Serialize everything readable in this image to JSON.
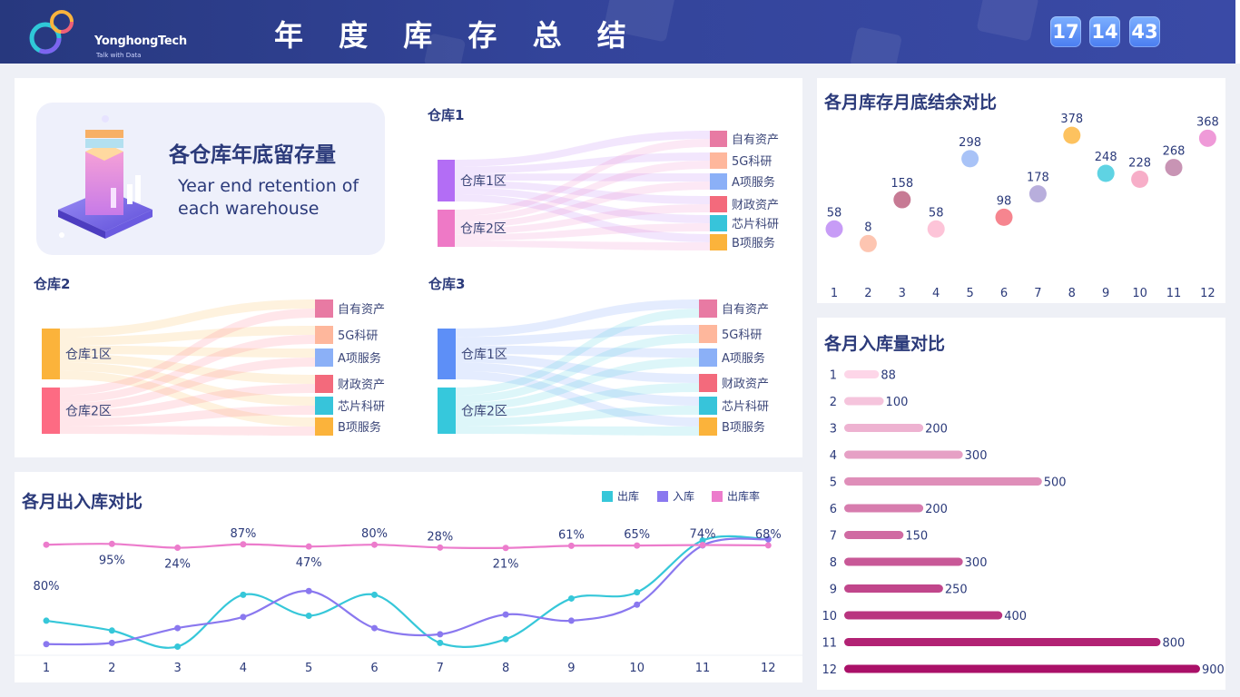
{
  "header": {
    "title": "年 度 库 存 总 结",
    "logo_name": "YonghongTech",
    "logo_tagline": "Talk with Data",
    "clock": [
      "17",
      "14",
      "43"
    ]
  },
  "hero": {
    "title_cn": "各仓库年底留存量",
    "title_en": "Year end retention of each warehouse"
  },
  "sankey_colors": {
    "zone1": [
      "#b36df5",
      "#fbb33b",
      "#5d8ff7"
    ],
    "zone2": [
      "#ee79c6",
      "#fd6b83",
      "#36c8dc"
    ],
    "targets": [
      "#e87aa3",
      "#feb79c",
      "#8bb0f7",
      "#f36a7c",
      "#37c4da",
      "#fbb33b"
    ]
  },
  "chart_data": [
    {
      "type": "sankey",
      "title": "仓库1",
      "sources": [
        "仓库1区",
        "仓库2区"
      ],
      "targets": [
        "自有资产",
        "5G科研",
        "A项服务",
        "财政资产",
        "芯片科研",
        "B项服务"
      ]
    },
    {
      "type": "sankey",
      "title": "仓库2",
      "sources": [
        "仓库1区",
        "仓库2区"
      ],
      "targets": [
        "自有资产",
        "5G科研",
        "A项服务",
        "财政资产",
        "芯片科研",
        "B项服务"
      ]
    },
    {
      "type": "sankey",
      "title": "仓库3",
      "sources": [
        "仓库1区",
        "仓库2区"
      ],
      "targets": [
        "自有资产",
        "5G科研",
        "A项服务",
        "财政资产",
        "芯片科研",
        "B项服务"
      ]
    },
    {
      "type": "scatter",
      "title": "各月库存月底结余对比",
      "x": [
        1,
        2,
        3,
        4,
        5,
        6,
        7,
        8,
        9,
        10,
        11,
        12
      ],
      "y": [
        58,
        8,
        158,
        58,
        298,
        98,
        178,
        378,
        248,
        228,
        268,
        368
      ],
      "colors": [
        "#c79cf6",
        "#fdc5b1",
        "#c77a94",
        "#fdc4d8",
        "#a9c3f7",
        "#f6858f",
        "#b8aedc",
        "#fdc25f",
        "#5fd3e3",
        "#f7aec8",
        "#c894b4",
        "#ef9ad8"
      ],
      "ylim": [
        0,
        400
      ]
    },
    {
      "type": "bar",
      "orientation": "horizontal",
      "title": "各月入库量对比",
      "categories": [
        "1",
        "2",
        "3",
        "4",
        "5",
        "6",
        "7",
        "8",
        "9",
        "10",
        "11",
        "12"
      ],
      "values": [
        88,
        100,
        200,
        300,
        500,
        200,
        150,
        300,
        250,
        400,
        800,
        900
      ],
      "xlim": [
        0,
        900
      ]
    },
    {
      "type": "line",
      "title": "各月出入库对比",
      "x": [
        1,
        2,
        3,
        4,
        5,
        6,
        7,
        8,
        9,
        10,
        11,
        12
      ],
      "series": [
        {
          "name": "出库",
          "color": "#36c7d9",
          "values": [
            28,
            20,
            7,
            49,
            32,
            49,
            10,
            13,
            46,
            51,
            93,
            94
          ]
        },
        {
          "name": "入库",
          "color": "#8a78ef",
          "values": [
            9,
            10,
            22,
            31,
            52,
            22,
            17,
            33,
            28,
            41,
            89,
            94
          ]
        },
        {
          "name": "出库率",
          "color": "#ec7ccc",
          "values": [
            80,
            95,
            24,
            87,
            47,
            80,
            28,
            21,
            61,
            65,
            74,
            68
          ],
          "labels": [
            "80%",
            "95%",
            "24%",
            "87%",
            "47%",
            "80%",
            "28%",
            "21%",
            "61%",
            "65%",
            "74%",
            "68%"
          ]
        }
      ]
    }
  ]
}
